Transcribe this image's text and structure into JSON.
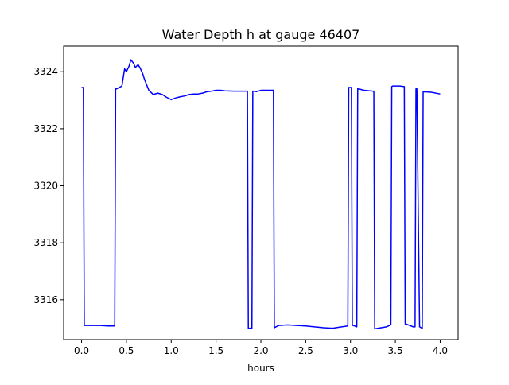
{
  "chart_data": {
    "type": "line",
    "title": "Water Depth h at gauge 46407",
    "xlabel": "hours",
    "ylabel": "",
    "xlim": [
      -0.2,
      4.2
    ],
    "ylim": [
      3314.6,
      3324.9
    ],
    "xticks": [
      0.0,
      0.5,
      1.0,
      1.5,
      2.0,
      2.5,
      3.0,
      3.5,
      4.0
    ],
    "xtick_labels": [
      "0.0",
      "0.5",
      "1.0",
      "1.5",
      "2.0",
      "2.5",
      "3.0",
      "3.5",
      "4.0"
    ],
    "yticks": [
      3316,
      3318,
      3320,
      3322,
      3324
    ],
    "ytick_labels": [
      "3316",
      "3318",
      "3320",
      "3322",
      "3324"
    ],
    "grid": false,
    "colors": {
      "line": "#0000ff",
      "axes": "#000000",
      "background": "#ffffff"
    },
    "series": [
      {
        "name": "",
        "x": [
          0.0,
          0.02,
          0.03,
          0.1,
          0.2,
          0.3,
          0.37,
          0.38,
          0.39,
          0.45,
          0.48,
          0.5,
          0.53,
          0.55,
          0.58,
          0.6,
          0.63,
          0.65,
          0.68,
          0.7,
          0.75,
          0.8,
          0.85,
          0.9,
          0.95,
          1.0,
          1.05,
          1.1,
          1.15,
          1.2,
          1.25,
          1.3,
          1.35,
          1.4,
          1.45,
          1.5,
          1.55,
          1.6,
          1.7,
          1.8,
          1.85,
          1.86,
          1.87,
          1.9,
          1.91,
          1.92,
          1.95,
          2.0,
          2.05,
          2.1,
          2.14,
          2.15,
          2.2,
          2.3,
          2.4,
          2.5,
          2.6,
          2.7,
          2.8,
          2.9,
          2.97,
          2.98,
          2.99,
          3.01,
          3.02,
          3.03,
          3.07,
          3.08,
          3.09,
          3.15,
          3.25,
          3.26,
          3.27,
          3.4,
          3.45,
          3.46,
          3.47,
          3.55,
          3.6,
          3.61,
          3.62,
          3.7,
          3.72,
          3.73,
          3.74,
          3.77,
          3.8,
          3.81,
          3.9,
          4.0
        ],
        "y": [
          3323.45,
          3323.45,
          3315.1,
          3315.1,
          3315.1,
          3315.08,
          3315.08,
          3323.4,
          3323.4,
          3323.5,
          3324.1,
          3324.0,
          3324.2,
          3324.42,
          3324.3,
          3324.15,
          3324.25,
          3324.15,
          3323.95,
          3323.75,
          3323.35,
          3323.2,
          3323.25,
          3323.2,
          3323.1,
          3323.02,
          3323.08,
          3323.12,
          3323.15,
          3323.2,
          3323.22,
          3323.22,
          3323.25,
          3323.3,
          3323.32,
          3323.35,
          3323.35,
          3323.33,
          3323.32,
          3323.32,
          3323.32,
          3315.0,
          3315.0,
          3315.0,
          3323.32,
          3323.32,
          3323.3,
          3323.35,
          3323.35,
          3323.35,
          3323.35,
          3315.02,
          3315.1,
          3315.12,
          3315.1,
          3315.08,
          3315.05,
          3315.02,
          3315.0,
          3315.05,
          3315.08,
          3323.45,
          3323.45,
          3323.45,
          3315.1,
          3315.1,
          3315.05,
          3323.4,
          3323.4,
          3323.35,
          3323.32,
          3323.32,
          3314.98,
          3315.05,
          3315.12,
          3323.48,
          3323.5,
          3323.5,
          3323.48,
          3315.15,
          3315.15,
          3315.05,
          3315.05,
          3323.4,
          3323.4,
          3315.05,
          3315.0,
          3323.3,
          3323.28,
          3323.22
        ]
      }
    ]
  }
}
